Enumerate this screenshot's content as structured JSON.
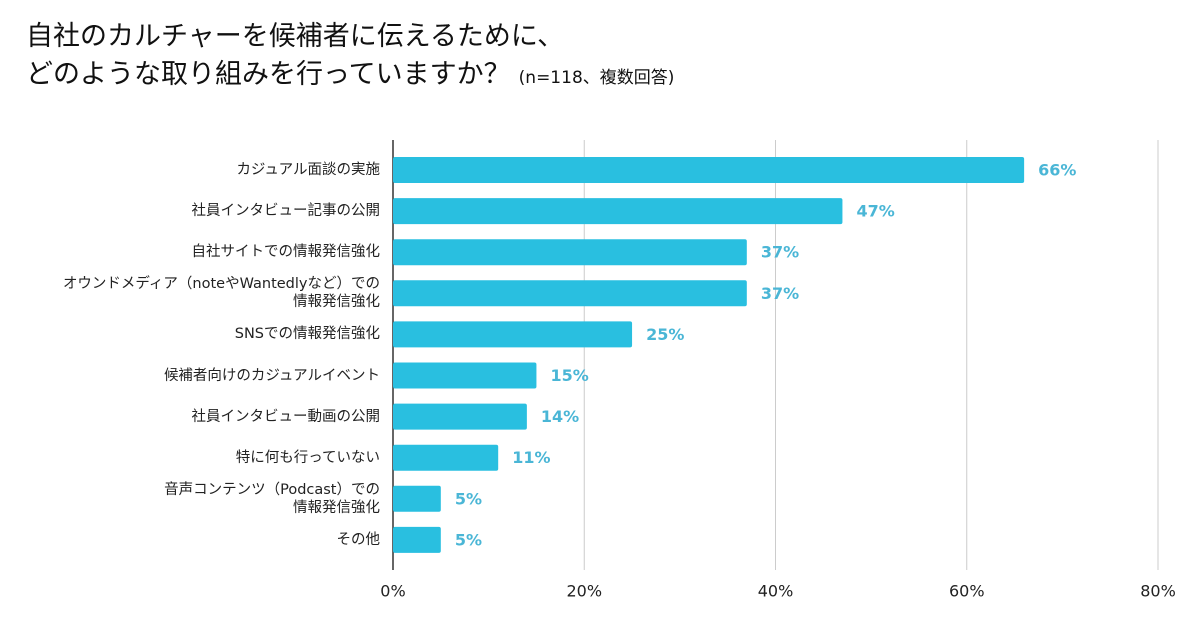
{
  "chart_data": {
    "type": "bar",
    "orientation": "horizontal",
    "title": "自社のカルチャーを候補者に伝えるために、\nどのような取り組みを行っていますか？",
    "subtitle": "(n=118、複数回答)",
    "categories": [
      "カジュアル面談の実施",
      "社員インタビュー記事の公開",
      "自社サイトでの情報発信強化",
      "オウンドメディア（noteやWantedlyなど）での\n情報発信強化",
      "SNSでの情報発信強化",
      "候補者向けのカジュアルイベント",
      "社員インタビュー動画の公開",
      "特に何も行っていない",
      "音声コンテンツ（Podcast）での\n情報発信強化",
      "その他"
    ],
    "values": [
      66,
      47,
      37,
      37,
      25,
      15,
      14,
      11,
      5,
      5
    ],
    "value_labels": [
      "66%",
      "47%",
      "37%",
      "37%",
      "25%",
      "15%",
      "14%",
      "11%",
      "5%",
      "5%"
    ],
    "color": "#29bfe0",
    "xlim": [
      0,
      80
    ],
    "xticks": [
      {
        "value": 0,
        "label": "0%"
      },
      {
        "value": 20,
        "label": "20%"
      },
      {
        "value": 40,
        "label": "40%"
      },
      {
        "value": 60,
        "label": "60%"
      },
      {
        "value": 80,
        "label": "80%"
      }
    ],
    "grid": true
  }
}
